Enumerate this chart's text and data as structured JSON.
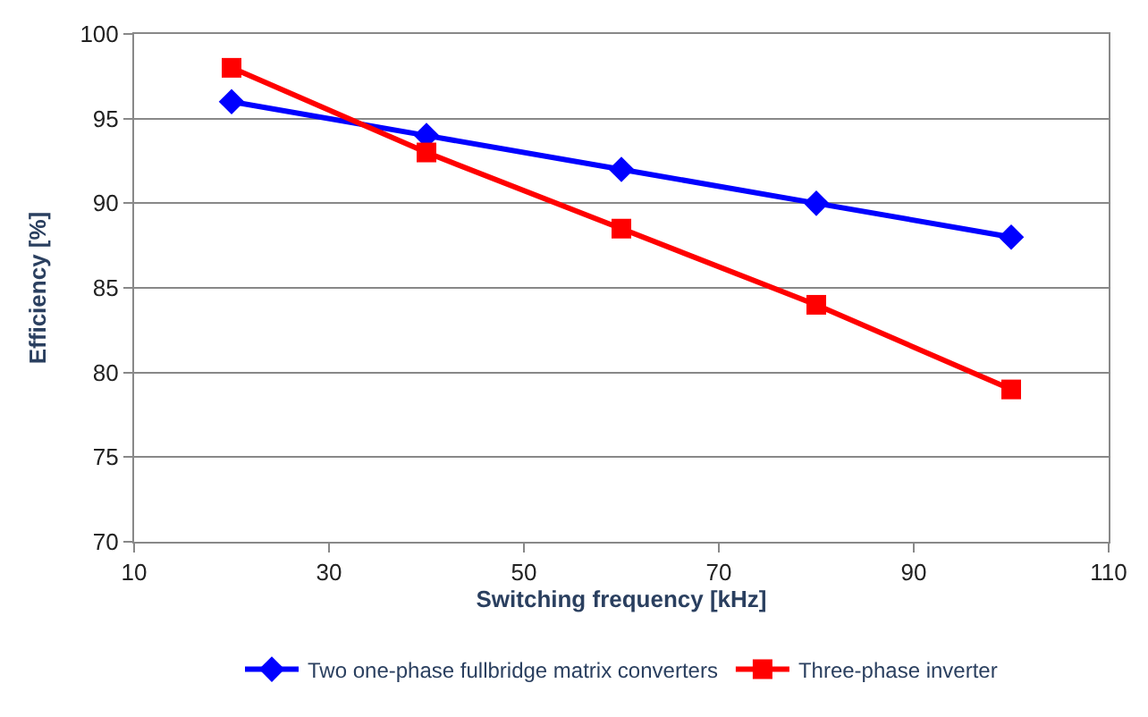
{
  "chart_data": {
    "type": "line",
    "xlabel": "Switching frequency [kHz]",
    "ylabel": "Efficiency [%]",
    "x": [
      20,
      40,
      60,
      80,
      100
    ],
    "series": [
      {
        "name": "Two one-phase fullbridge matrix converters",
        "color": "#0000ff",
        "values": [
          96,
          94,
          92,
          90,
          88
        ],
        "marker": "diamond"
      },
      {
        "name": "Three-phase inverter",
        "color": "#ff0000",
        "values": [
          98,
          93,
          88.5,
          84,
          79
        ],
        "marker": "square"
      }
    ],
    "xlim": [
      10,
      110
    ],
    "xticks": [
      10,
      30,
      50,
      70,
      90,
      110
    ],
    "ylim": [
      70,
      100
    ],
    "yticks": [
      70,
      75,
      80,
      85,
      90,
      95,
      100
    ],
    "grid": "y",
    "legend": "bottom",
    "line_style": "solid"
  }
}
